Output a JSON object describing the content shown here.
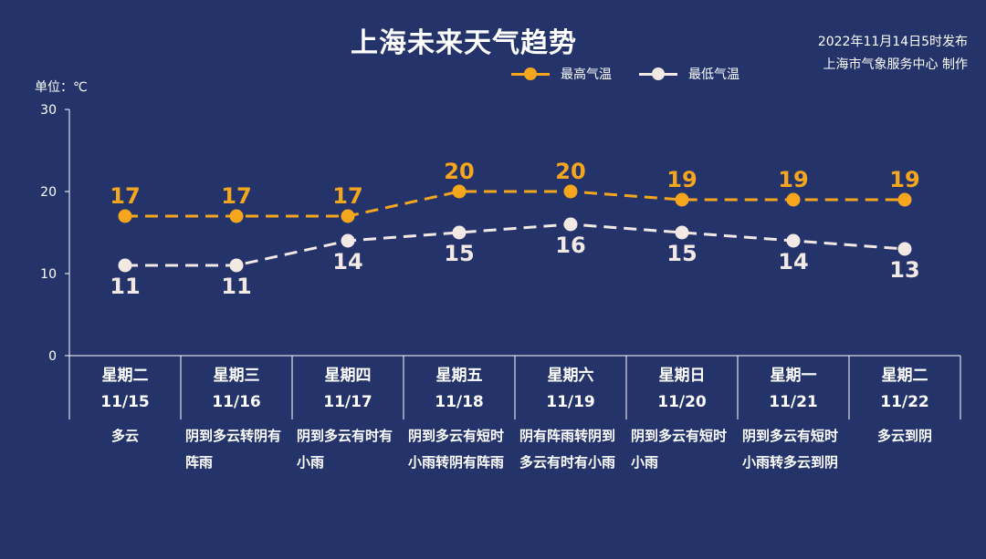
{
  "colors": {
    "background": "#24346a",
    "high": "#f5a61d",
    "low": "#f2e8e4",
    "axis": "#ffffff"
  },
  "header": {
    "title": "上海未来天气趋势",
    "published": "2022年11月14日5时发布",
    "producer": "上海市气象服务中心 制作"
  },
  "legend": {
    "high_label": "最高气温",
    "low_label": "最低气温"
  },
  "unit_label": "单位：℃",
  "chart_data": {
    "type": "line",
    "title": "上海未来天气趋势",
    "ylabel": "单位：℃",
    "ylim": [
      0,
      30
    ],
    "yticks": [
      0,
      10,
      20,
      30
    ],
    "grid": false,
    "legend_position": "top-right",
    "categories": [
      "11/15",
      "11/16",
      "11/17",
      "11/18",
      "11/19",
      "11/20",
      "11/21",
      "11/22"
    ],
    "series": [
      {
        "name": "最高气温",
        "values": [
          17,
          17,
          17,
          20,
          20,
          19,
          19,
          19
        ],
        "color": "#f5a61d",
        "line_style": "dashed"
      },
      {
        "name": "最低气温",
        "values": [
          11,
          11,
          14,
          15,
          16,
          15,
          14,
          13
        ],
        "color": "#f2e8e4",
        "line_style": "dashed"
      }
    ]
  },
  "days": [
    {
      "weekday": "星期二",
      "date": "11/15",
      "weather": "多云"
    },
    {
      "weekday": "星期三",
      "date": "11/16",
      "weather": "阴到多云转阴有阵雨"
    },
    {
      "weekday": "星期四",
      "date": "11/17",
      "weather": "阴到多云有时有小雨"
    },
    {
      "weekday": "星期五",
      "date": "11/18",
      "weather": "阴到多云有短时小雨转阴有阵雨"
    },
    {
      "weekday": "星期六",
      "date": "11/19",
      "weather": "阴有阵雨转阴到多云有时有小雨"
    },
    {
      "weekday": "星期日",
      "date": "11/20",
      "weather": "阴到多云有短时小雨"
    },
    {
      "weekday": "星期一",
      "date": "11/21",
      "weather": "阴到多云有短时小雨转多云到阴"
    },
    {
      "weekday": "星期二",
      "date": "11/22",
      "weather": "多云到阴"
    }
  ]
}
